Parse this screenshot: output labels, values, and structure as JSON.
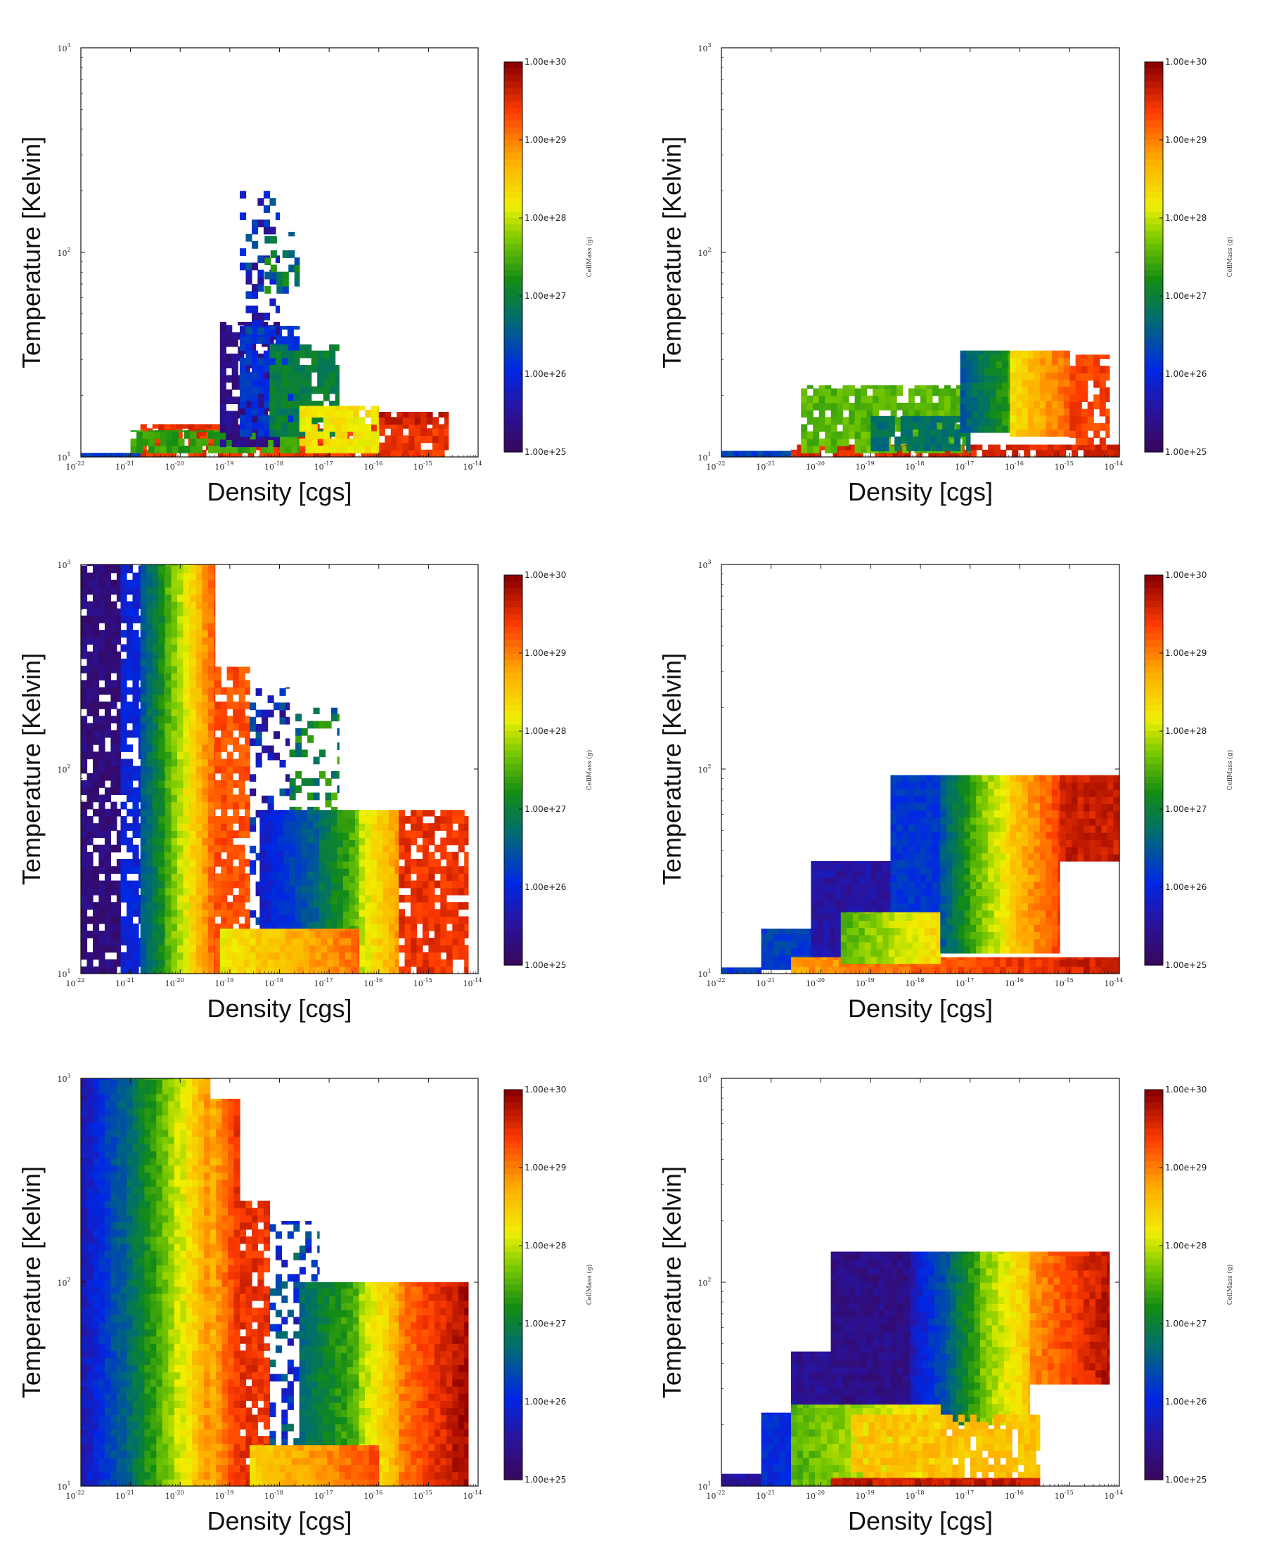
{
  "figure": {
    "description_scale": "log-log phase plots",
    "panel_count": 6
  },
  "chart_data": [
    {
      "panel": "top-left",
      "type": "heatmap",
      "xlabel": "Density [cgs]",
      "ylabel": "Temperature [Kelvin]",
      "x_ticks": [
        {
          "base": "10",
          "exp": "-22"
        },
        {
          "base": "10",
          "exp": "-21"
        },
        {
          "base": "10",
          "exp": "-20"
        },
        {
          "base": "10",
          "exp": "-19"
        },
        {
          "base": "10",
          "exp": "-18"
        },
        {
          "base": "10",
          "exp": "-17"
        },
        {
          "base": "10",
          "exp": "-16"
        },
        {
          "base": "10",
          "exp": "-15"
        },
        {
          "base": "10",
          "exp": "-14"
        }
      ],
      "y_ticks": [
        {
          "base": "10",
          "exp": "1"
        },
        {
          "base": "10",
          "exp": "2"
        },
        {
          "base": "10",
          "exp": "3"
        }
      ],
      "xlim": [
        1e-22,
        1e-14
      ],
      "ylim": [
        10,
        1000
      ],
      "colorbar_label": "CellMass (g)",
      "colorbar_ticks": [
        "1.00e+25",
        "1.00e+26",
        "1.00e+27",
        "1.00e+28",
        "1.00e+29",
        "1.00e+30"
      ],
      "regions": [
        {
          "x0": -22,
          "x1": -20.8,
          "y0": 1.0,
          "y1": 1.02,
          "c": 26.3,
          "pattern": "solid"
        },
        {
          "x0": -20.8,
          "x1": -14.6,
          "y0": 1.0,
          "y1": 1.16,
          "c": 29.5,
          "pattern": "sparse"
        },
        {
          "x0": -21,
          "x1": -17.6,
          "y0": 1.02,
          "y1": 1.13,
          "c": 27.4,
          "pattern": "sparse"
        },
        {
          "x0": -19.2,
          "x1": -18.0,
          "y0": 1.05,
          "y1": 1.66,
          "c": 25.4,
          "pattern": "sparse"
        },
        {
          "x0": -18.8,
          "x1": -17.6,
          "y0": 1.1,
          "y1": 1.64,
          "c": 26.2,
          "pattern": "sparse"
        },
        {
          "x0": -18.2,
          "x1": -16.8,
          "y0": 1.1,
          "y1": 1.55,
          "c": 27.0,
          "pattern": "sparse"
        },
        {
          "x0": -17.6,
          "x1": -16.0,
          "y0": 1.02,
          "y1": 1.25,
          "c": 28.3,
          "pattern": "sparse"
        },
        {
          "x0": -16.0,
          "x1": -14.6,
          "y0": 1.16,
          "y1": 1.22,
          "c": 29.7,
          "pattern": "sparse"
        },
        {
          "x0": -18.8,
          "x1": -18.0,
          "y0": 1.6,
          "y1": 2.3,
          "c": 26.0,
          "pattern": "scatter"
        },
        {
          "x0": -18.3,
          "x1": -17.6,
          "y0": 1.8,
          "y1": 2.1,
          "c": 26.8,
          "pattern": "scatter"
        }
      ]
    },
    {
      "panel": "top-right",
      "type": "heatmap",
      "xlabel": "Density [cgs]",
      "ylabel": "Temperature [Kelvin]",
      "x_ticks": [
        {
          "base": "10",
          "exp": "-22"
        },
        {
          "base": "10",
          "exp": "-21"
        },
        {
          "base": "10",
          "exp": "-20"
        },
        {
          "base": "10",
          "exp": "-19"
        },
        {
          "base": "10",
          "exp": "-18"
        },
        {
          "base": "10",
          "exp": "-17"
        },
        {
          "base": "10",
          "exp": "-16"
        },
        {
          "base": "10",
          "exp": "-15"
        },
        {
          "base": "10",
          "exp": "-14"
        }
      ],
      "y_ticks": [
        {
          "base": "10",
          "exp": "1"
        },
        {
          "base": "10",
          "exp": "2"
        },
        {
          "base": "10",
          "exp": "3"
        }
      ],
      "xlim": [
        1e-22,
        1e-14
      ],
      "ylim": [
        10,
        1000
      ],
      "colorbar_label": "CellMass (g)",
      "colorbar_ticks": [
        "1.00e+25",
        "1.00e+26",
        "1.00e+27",
        "1.00e+28",
        "1.00e+29",
        "1.00e+30"
      ],
      "regions": [
        {
          "x0": -22,
          "x1": -20.6,
          "y0": 1.0,
          "y1": 1.03,
          "c": 26.3,
          "pattern": "solid"
        },
        {
          "x0": -20.6,
          "x1": -14.0,
          "y0": 1.0,
          "y1": 1.06,
          "c": 29.6,
          "pattern": "sparse"
        },
        {
          "x0": -20.4,
          "x1": -17.0,
          "y0": 1.02,
          "y1": 1.35,
          "c": 27.6,
          "pattern": "sparse"
        },
        {
          "x0": -19.0,
          "x1": -17.0,
          "y0": 1.03,
          "y1": 1.2,
          "c": 26.8,
          "pattern": "sparse"
        },
        {
          "x0": -17.2,
          "x1": -16.2,
          "y0": 1.12,
          "y1": 1.52,
          "c": 27.0,
          "pattern": "gradient"
        },
        {
          "x0": -16.2,
          "x1": -15.0,
          "y0": 1.1,
          "y1": 1.52,
          "c": 28.8,
          "pattern": "gradient"
        },
        {
          "x0": -15.0,
          "x1": -14.2,
          "y0": 1.06,
          "y1": 1.5,
          "c": 29.4,
          "pattern": "sparse"
        }
      ]
    },
    {
      "panel": "middle-left",
      "type": "heatmap",
      "xlabel": "Density [cgs]",
      "ylabel": "Temperature [Kelvin]",
      "x_ticks": [
        {
          "base": "10",
          "exp": "-22"
        },
        {
          "base": "10",
          "exp": "-21"
        },
        {
          "base": "10",
          "exp": "-20"
        },
        {
          "base": "10",
          "exp": "-19"
        },
        {
          "base": "10",
          "exp": "-18"
        },
        {
          "base": "10",
          "exp": "-17"
        },
        {
          "base": "10",
          "exp": "-16"
        },
        {
          "base": "10",
          "exp": "-15"
        },
        {
          "base": "10",
          "exp": "-14"
        }
      ],
      "y_ticks": [
        {
          "base": "10",
          "exp": "1"
        },
        {
          "base": "10",
          "exp": "2"
        },
        {
          "base": "10",
          "exp": "3"
        }
      ],
      "xlim": [
        1e-22,
        1e-14
      ],
      "ylim": [
        10,
        1000
      ],
      "colorbar_label": "CellMass (g)",
      "colorbar_ticks": [
        "1.00e+25",
        "1.00e+26",
        "1.00e+27",
        "1.00e+28",
        "1.00e+29",
        "1.00e+30"
      ],
      "regions": [
        {
          "x0": -22,
          "x1": -21.2,
          "y0": 1.0,
          "y1": 3.0,
          "c": 25.3,
          "pattern": "sparse"
        },
        {
          "x0": -21.2,
          "x1": -20.8,
          "y0": 1.0,
          "y1": 3.0,
          "c": 26.0,
          "pattern": "sparse"
        },
        {
          "x0": -20.8,
          "x1": -20.3,
          "y0": 1.0,
          "y1": 3.0,
          "c": 27.0,
          "pattern": "gradient"
        },
        {
          "x0": -20.3,
          "x1": -19.8,
          "y0": 1.0,
          "y1": 3.0,
          "c": 28.0,
          "pattern": "gradient"
        },
        {
          "x0": -19.8,
          "x1": -19.3,
          "y0": 1.0,
          "y1": 3.0,
          "c": 28.9,
          "pattern": "gradient"
        },
        {
          "x0": -19.3,
          "x1": -18.6,
          "y0": 1.0,
          "y1": 2.5,
          "c": 29.3,
          "pattern": "sparse"
        },
        {
          "x0": -18.6,
          "x1": -17.8,
          "y0": 1.1,
          "y1": 2.4,
          "c": 26.0,
          "pattern": "scatter"
        },
        {
          "x0": -17.8,
          "x1": -16.8,
          "y0": 1.5,
          "y1": 2.3,
          "c": 27.0,
          "pattern": "scatter"
        },
        {
          "x0": -18.4,
          "x1": -17.2,
          "y0": 1.22,
          "y1": 1.8,
          "c": 26.3,
          "pattern": "gradient"
        },
        {
          "x0": -17.2,
          "x1": -16.4,
          "y0": 1.2,
          "y1": 1.8,
          "c": 27.3,
          "pattern": "gradient"
        },
        {
          "x0": -16.4,
          "x1": -15.6,
          "y0": 1.0,
          "y1": 1.8,
          "c": 28.5,
          "pattern": "gradient"
        },
        {
          "x0": -15.6,
          "x1": -14.2,
          "y0": 1.0,
          "y1": 1.8,
          "c": 29.5,
          "pattern": "sparse"
        },
        {
          "x0": -19.2,
          "x1": -16.4,
          "y0": 1.0,
          "y1": 1.22,
          "c": 28.7,
          "pattern": "gradient"
        }
      ]
    },
    {
      "panel": "middle-right",
      "type": "heatmap",
      "xlabel": "Density [cgs]",
      "ylabel": "Temperature [Kelvin]",
      "x_ticks": [
        {
          "base": "10",
          "exp": "-22"
        },
        {
          "base": "10",
          "exp": "-21"
        },
        {
          "base": "10",
          "exp": "-20"
        },
        {
          "base": "10",
          "exp": "-19"
        },
        {
          "base": "10",
          "exp": "-18"
        },
        {
          "base": "10",
          "exp": "-17"
        },
        {
          "base": "10",
          "exp": "-16"
        },
        {
          "base": "10",
          "exp": "-15"
        },
        {
          "base": "10",
          "exp": "-14"
        }
      ],
      "y_ticks": [
        {
          "base": "10",
          "exp": "1"
        },
        {
          "base": "10",
          "exp": "2"
        },
        {
          "base": "10",
          "exp": "3"
        }
      ],
      "xlim": [
        1e-22,
        1e-14
      ],
      "ylim": [
        10,
        1000
      ],
      "colorbar_label": "CellMass (g)",
      "colorbar_ticks": [
        "1.00e+25",
        "1.00e+26",
        "1.00e+27",
        "1.00e+28",
        "1.00e+29",
        "1.00e+30"
      ],
      "regions": [
        {
          "x0": -22,
          "x1": -21.2,
          "y0": 1.0,
          "y1": 1.03,
          "c": 26.2,
          "pattern": "solid"
        },
        {
          "x0": -21.2,
          "x1": -20.2,
          "y0": 1.02,
          "y1": 1.22,
          "c": 26.3,
          "pattern": "solid"
        },
        {
          "x0": -20.2,
          "x1": -18.6,
          "y0": 1.05,
          "y1": 1.55,
          "c": 25.6,
          "pattern": "solid"
        },
        {
          "x0": -18.6,
          "x1": -17.6,
          "y0": 1.1,
          "y1": 1.97,
          "c": 26.2,
          "pattern": "solid"
        },
        {
          "x0": -20.6,
          "x1": -14.0,
          "y0": 1.0,
          "y1": 1.08,
          "c": 29.3,
          "pattern": "gradient"
        },
        {
          "x0": -19.6,
          "x1": -17.6,
          "y0": 1.05,
          "y1": 1.3,
          "c": 28.0,
          "pattern": "gradient"
        },
        {
          "x0": -17.6,
          "x1": -17.0,
          "y0": 1.1,
          "y1": 1.97,
          "c": 27.0,
          "pattern": "gradient"
        },
        {
          "x0": -17.0,
          "x1": -16.2,
          "y0": 1.1,
          "y1": 1.97,
          "c": 28.0,
          "pattern": "gradient"
        },
        {
          "x0": -16.2,
          "x1": -15.2,
          "y0": 1.1,
          "y1": 1.97,
          "c": 29.0,
          "pattern": "gradient"
        },
        {
          "x0": -15.2,
          "x1": -14.0,
          "y0": 1.55,
          "y1": 1.97,
          "c": 29.7,
          "pattern": "solid"
        }
      ]
    },
    {
      "panel": "bottom-left",
      "type": "heatmap",
      "xlabel": "Density [cgs]",
      "ylabel": "Temperature [Kelvin]",
      "x_ticks": [
        {
          "base": "10",
          "exp": "-22"
        },
        {
          "base": "10",
          "exp": "-21"
        },
        {
          "base": "10",
          "exp": "-20"
        },
        {
          "base": "10",
          "exp": "-19"
        },
        {
          "base": "10",
          "exp": "-18"
        },
        {
          "base": "10",
          "exp": "-17"
        },
        {
          "base": "10",
          "exp": "-16"
        },
        {
          "base": "10",
          "exp": "-15"
        },
        {
          "base": "10",
          "exp": "-14"
        }
      ],
      "y_ticks": [
        {
          "base": "10",
          "exp": "1"
        },
        {
          "base": "10",
          "exp": "2"
        },
        {
          "base": "10",
          "exp": "3"
        }
      ],
      "xlim": [
        1e-22,
        1e-14
      ],
      "ylim": [
        10,
        1000
      ],
      "colorbar_label": "CellMass (g)",
      "colorbar_ticks": [
        "1.00e+25",
        "1.00e+26",
        "1.00e+27",
        "1.00e+28",
        "1.00e+29",
        "1.00e+30"
      ],
      "regions": [
        {
          "x0": -22,
          "x1": -21.2,
          "y0": 1.0,
          "y1": 3.0,
          "c": 26.2,
          "pattern": "gradient"
        },
        {
          "x0": -21.2,
          "x1": -20.6,
          "y0": 1.0,
          "y1": 3.0,
          "c": 27.0,
          "pattern": "gradient"
        },
        {
          "x0": -20.6,
          "x1": -20.0,
          "y0": 1.0,
          "y1": 3.0,
          "c": 27.8,
          "pattern": "gradient"
        },
        {
          "x0": -20.0,
          "x1": -19.4,
          "y0": 1.0,
          "y1": 3.0,
          "c": 28.6,
          "pattern": "gradient"
        },
        {
          "x0": -19.4,
          "x1": -18.8,
          "y0": 1.0,
          "y1": 2.9,
          "c": 29.2,
          "pattern": "gradient"
        },
        {
          "x0": -18.8,
          "x1": -18.2,
          "y0": 1.0,
          "y1": 2.4,
          "c": 29.5,
          "pattern": "sparse"
        },
        {
          "x0": -18.2,
          "x1": -17.2,
          "y0": 1.2,
          "y1": 2.3,
          "c": 26.3,
          "pattern": "scatter"
        },
        {
          "x0": -17.6,
          "x1": -16.4,
          "y0": 1.2,
          "y1": 2.0,
          "c": 27.2,
          "pattern": "gradient"
        },
        {
          "x0": -16.4,
          "x1": -15.6,
          "y0": 1.0,
          "y1": 2.0,
          "c": 28.4,
          "pattern": "gradient"
        },
        {
          "x0": -15.6,
          "x1": -14.2,
          "y0": 1.0,
          "y1": 2.0,
          "c": 29.5,
          "pattern": "gradient"
        },
        {
          "x0": -18.6,
          "x1": -16.0,
          "y0": 1.0,
          "y1": 1.2,
          "c": 28.9,
          "pattern": "gradient"
        }
      ]
    },
    {
      "panel": "bottom-right",
      "type": "heatmap",
      "xlabel": "Density [cgs]",
      "ylabel": "Temperature [Kelvin]",
      "x_ticks": [
        {
          "base": "10",
          "exp": "-22"
        },
        {
          "base": "10",
          "exp": "-21"
        },
        {
          "base": "10",
          "exp": "-20"
        },
        {
          "base": "10",
          "exp": "-19"
        },
        {
          "base": "10",
          "exp": "-18"
        },
        {
          "base": "10",
          "exp": "-17"
        },
        {
          "base": "10",
          "exp": "-16"
        },
        {
          "base": "10",
          "exp": "-15"
        },
        {
          "base": "10",
          "exp": "-14"
        }
      ],
      "y_ticks": [
        {
          "base": "10",
          "exp": "1"
        },
        {
          "base": "10",
          "exp": "2"
        },
        {
          "base": "10",
          "exp": "3"
        }
      ],
      "xlim": [
        1e-22,
        1e-14
      ],
      "ylim": [
        10,
        1000
      ],
      "colorbar_label": "CellMass (g)",
      "colorbar_ticks": [
        "1.00e+25",
        "1.00e+26",
        "1.00e+27",
        "1.00e+28",
        "1.00e+29",
        "1.00e+30"
      ],
      "regions": [
        {
          "x0": -22,
          "x1": -21.2,
          "y0": 1.0,
          "y1": 1.06,
          "c": 25.6,
          "pattern": "solid"
        },
        {
          "x0": -21.2,
          "x1": -20.6,
          "y0": 1.0,
          "y1": 1.36,
          "c": 26.1,
          "pattern": "solid"
        },
        {
          "x0": -20.6,
          "x1": -19.8,
          "y0": 1.0,
          "y1": 1.66,
          "c": 25.5,
          "pattern": "solid"
        },
        {
          "x0": -19.8,
          "x1": -18.2,
          "y0": 1.2,
          "y1": 2.15,
          "c": 25.4,
          "pattern": "solid"
        },
        {
          "x0": -18.2,
          "x1": -17.4,
          "y0": 1.3,
          "y1": 2.15,
          "c": 26.2,
          "pattern": "gradient"
        },
        {
          "x0": -17.4,
          "x1": -16.8,
          "y0": 1.3,
          "y1": 2.15,
          "c": 27.2,
          "pattern": "gradient"
        },
        {
          "x0": -16.8,
          "x1": -15.8,
          "y0": 1.3,
          "y1": 2.15,
          "c": 28.2,
          "pattern": "gradient"
        },
        {
          "x0": -15.8,
          "x1": -14.2,
          "y0": 1.5,
          "y1": 2.15,
          "c": 29.4,
          "pattern": "gradient"
        },
        {
          "x0": -20.6,
          "x1": -17.6,
          "y0": 1.0,
          "y1": 1.4,
          "c": 28.0,
          "pattern": "gradient"
        },
        {
          "x0": -19.4,
          "x1": -15.6,
          "y0": 1.0,
          "y1": 1.35,
          "c": 28.6,
          "pattern": "sparse"
        },
        {
          "x0": -19.8,
          "x1": -15.6,
          "y0": 1.0,
          "y1": 1.04,
          "c": 29.7,
          "pattern": "solid"
        }
      ]
    }
  ]
}
